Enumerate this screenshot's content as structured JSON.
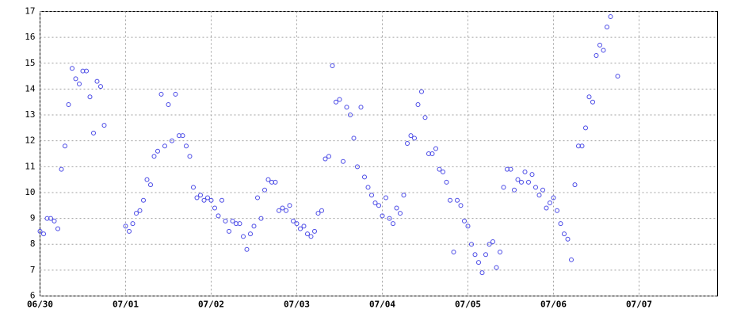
{
  "chart_data": {
    "type": "scatter",
    "color": "#4a4ae6",
    "grid": true,
    "x": [
      0,
      1,
      2,
      3,
      4,
      5,
      6,
      7,
      8,
      9,
      10,
      11,
      12,
      13,
      14,
      15,
      16,
      17,
      18,
      24,
      25,
      26,
      27,
      28,
      29,
      30,
      31,
      32,
      33,
      34,
      35,
      36,
      37,
      38,
      39,
      40,
      41,
      42,
      43,
      44,
      45,
      46,
      47,
      48,
      49,
      50,
      51,
      52,
      53,
      54,
      55,
      56,
      57,
      58,
      59,
      60,
      61,
      62,
      63,
      64,
      65,
      66,
      67,
      68,
      69,
      70,
      71,
      72,
      73,
      74,
      75,
      76,
      77,
      78,
      79,
      80,
      81,
      82,
      83,
      84,
      85,
      86,
      87,
      88,
      89,
      90,
      91,
      92,
      93,
      94,
      95,
      96,
      97,
      98,
      99,
      100,
      101,
      102,
      103,
      104,
      105,
      106,
      107,
      108,
      109,
      110,
      111,
      112,
      113,
      114,
      115,
      116,
      117,
      118,
      119,
      120,
      121,
      122,
      123,
      124,
      125,
      126,
      127,
      128,
      129,
      130,
      131,
      132,
      133,
      134,
      135,
      136,
      137,
      138,
      139,
      140,
      141,
      142,
      143,
      144,
      145,
      146,
      147,
      148,
      149,
      150,
      151,
      152,
      153,
      154,
      155,
      156,
      157,
      158,
      159,
      160,
      162
    ],
    "values": [
      8.5,
      8.4,
      9.0,
      9.0,
      8.9,
      8.6,
      10.9,
      11.8,
      13.4,
      14.8,
      14.4,
      14.2,
      14.7,
      14.7,
      13.7,
      12.3,
      14.3,
      14.1,
      12.6,
      8.7,
      8.5,
      8.8,
      9.2,
      9.3,
      9.7,
      10.5,
      10.3,
      11.4,
      11.6,
      13.8,
      11.8,
      13.4,
      12.0,
      13.8,
      12.2,
      12.2,
      11.8,
      11.4,
      10.2,
      9.8,
      9.9,
      9.7,
      9.8,
      9.7,
      9.4,
      9.1,
      9.7,
      8.9,
      8.5,
      8.9,
      8.8,
      8.8,
      8.3,
      7.8,
      8.4,
      8.7,
      9.8,
      9.0,
      10.1,
      10.5,
      10.4,
      10.4,
      9.3,
      9.4,
      9.3,
      9.5,
      8.9,
      8.8,
      8.6,
      8.7,
      8.4,
      8.3,
      8.5,
      9.2,
      9.3,
      11.3,
      11.4,
      14.9,
      13.5,
      13.6,
      11.2,
      13.3,
      13.0,
      12.1,
      11.0,
      13.3,
      10.6,
      10.2,
      9.9,
      9.6,
      9.5,
      9.1,
      9.8,
      9.0,
      8.8,
      9.4,
      9.2,
      9.9,
      11.9,
      12.2,
      12.1,
      13.4,
      13.9,
      12.9,
      11.5,
      11.5,
      11.7,
      10.9,
      10.8,
      10.4,
      9.7,
      7.7,
      9.7,
      9.5,
      8.9,
      8.7,
      8.0,
      7.6,
      7.3,
      6.9,
      7.6,
      8.0,
      8.1,
      7.1,
      7.7,
      10.2,
      10.9,
      10.9,
      10.1,
      10.5,
      10.4,
      10.8,
      10.4,
      10.7,
      10.2,
      9.9,
      10.1,
      9.4,
      9.6,
      9.8,
      9.3,
      8.8,
      8.4,
      8.2,
      7.4,
      10.3,
      11.8,
      11.8,
      12.5,
      13.7,
      13.5,
      15.3,
      15.7,
      15.5,
      16.4,
      16.8,
      14.5
    ],
    "xlim": [
      0,
      190
    ],
    "xticks": [
      {
        "value": 0,
        "label": "06/30"
      },
      {
        "value": 24,
        "label": "07/01"
      },
      {
        "value": 48,
        "label": "07/02"
      },
      {
        "value": 72,
        "label": "07/03"
      },
      {
        "value": 96,
        "label": "07/04"
      },
      {
        "value": 120,
        "label": "07/05"
      },
      {
        "value": 144,
        "label": "07/06"
      },
      {
        "value": 168,
        "label": "07/07"
      }
    ],
    "ylim": [
      6,
      17
    ],
    "yticks": [
      6,
      7,
      8,
      9,
      10,
      11,
      12,
      13,
      14,
      15,
      16,
      17
    ]
  }
}
